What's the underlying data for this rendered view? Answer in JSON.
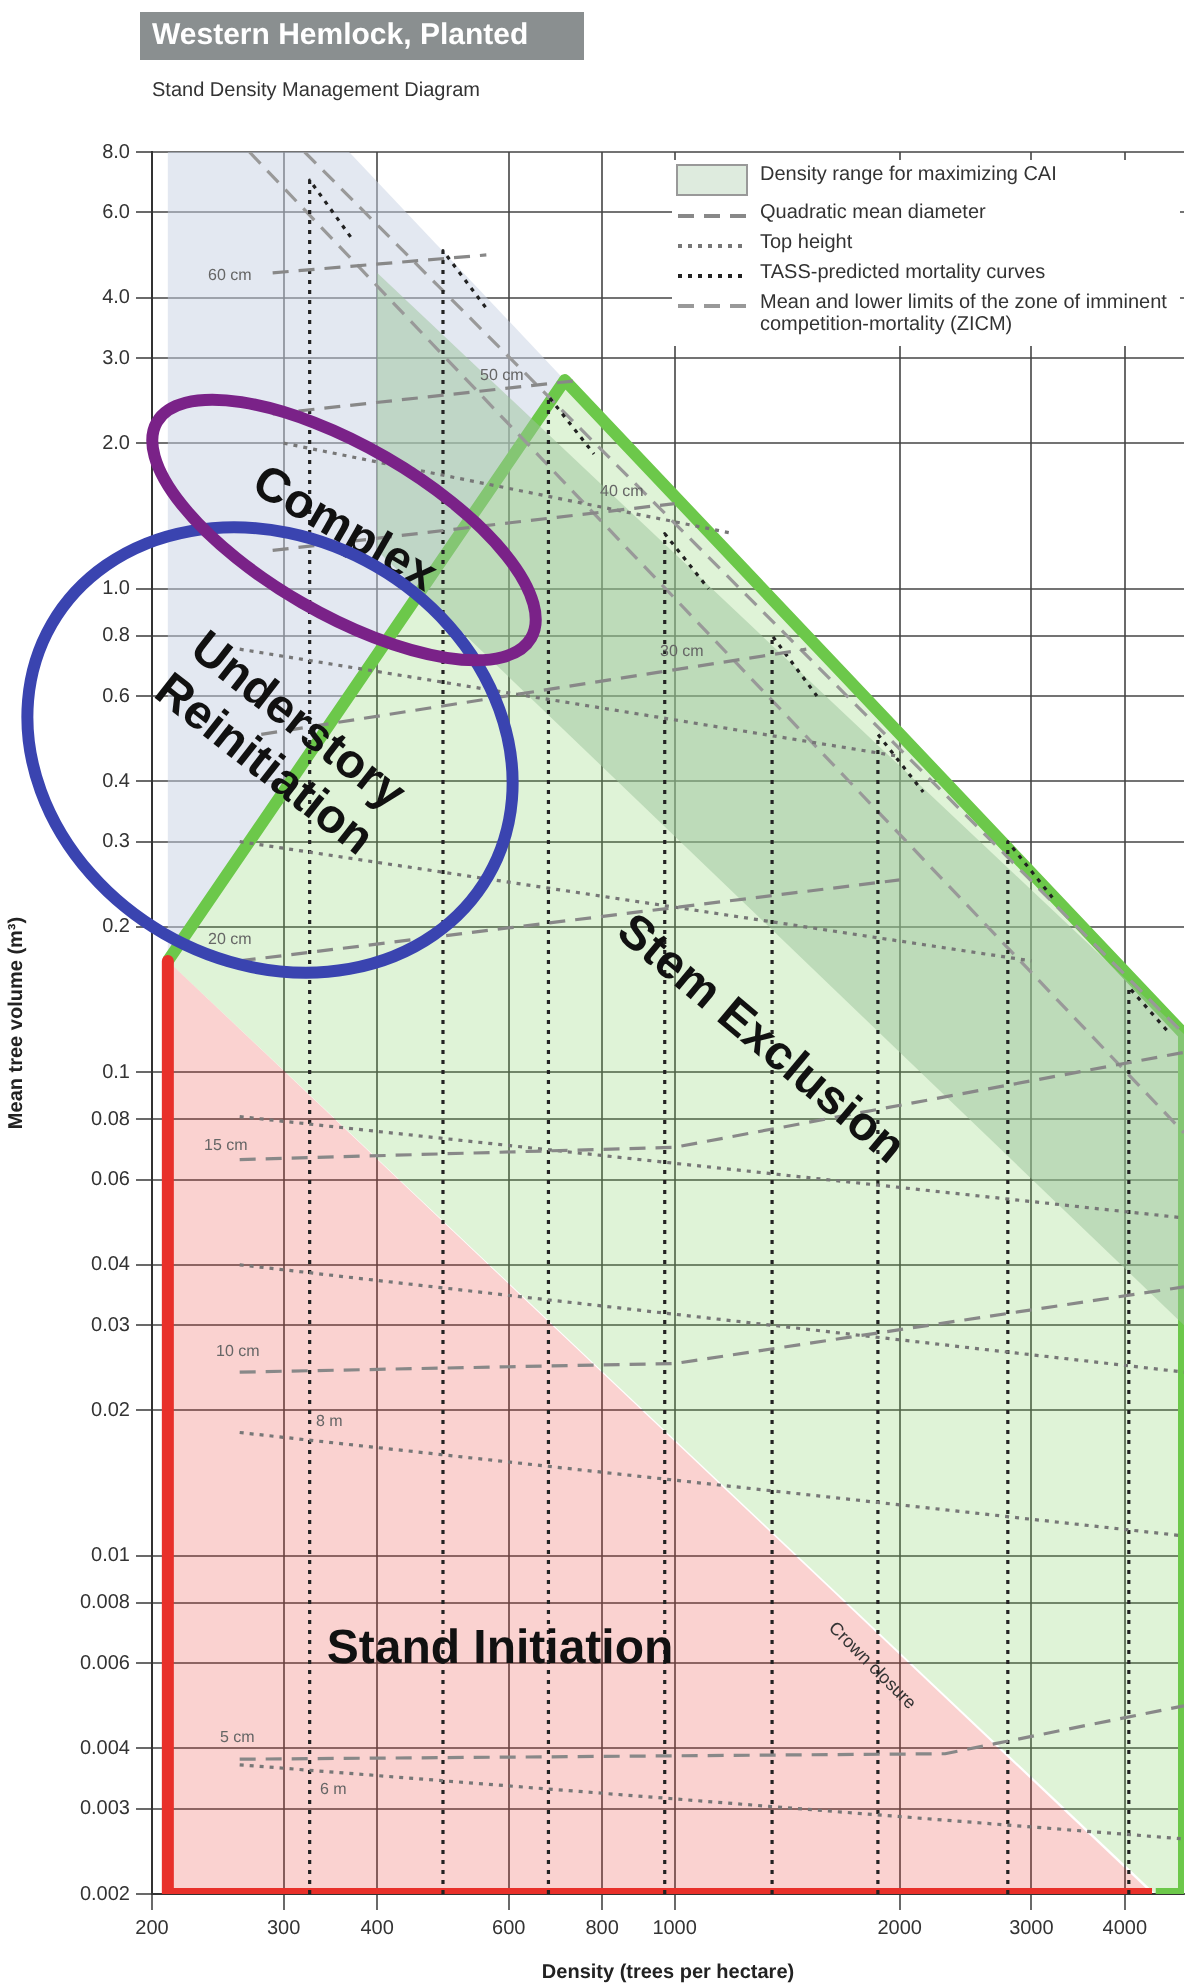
{
  "chart_data": {
    "type": "line",
    "title": "Western Hemlock, Planted",
    "subtitle": "Stand Density Management Diagram",
    "xlabel": "Density (trees per hectare)",
    "ylabel": "Mean tree volume (m³)",
    "log": "xy",
    "grid": true,
    "marker": "none",
    "legend": "top right",
    "xlim": [
      200,
      4800
    ],
    "xticks": [
      200,
      300,
      400,
      600,
      800,
      1000,
      2000,
      3000,
      4000
    ],
    "ylim": [
      0.002,
      8
    ],
    "yticks": [
      {
        "value": 8,
        "label": "8.0"
      },
      {
        "value": 6,
        "label": "6.0"
      },
      {
        "value": 4,
        "label": "4.0"
      },
      {
        "value": 3,
        "label": "3.0"
      },
      {
        "value": 2,
        "label": "2.0"
      },
      {
        "value": 1,
        "label": "1.0"
      },
      0.8,
      0.6,
      0.4,
      0.3,
      0.2,
      0.1,
      0.08,
      0.06,
      0.04,
      0.03,
      0.02,
      0.01,
      0.008,
      0.006,
      0.004,
      0.003,
      0.002
    ],
    "series": [
      {
        "type": "area",
        "color": "#c8d2e4",
        "x": [
          210,
          210,
          367,
          713
        ],
        "values": [
          0.17,
          8,
          8,
          2.7
        ]
      },
      {
        "type": "area",
        "color": "#6cc84a",
        "line_style": "solid",
        "x": [
          210,
          713,
          4800,
          4800,
          4400
        ],
        "values": [
          0.17,
          2.7,
          0.12,
          0.002,
          0.002
        ]
      },
      {
        "type": "area",
        "color": "#e8302a",
        "line_style": "solid",
        "x": [
          210,
          210,
          4350
        ],
        "values": [
          0.17,
          0.002,
          0.002
        ]
      },
      {
        "type": "area",
        "name": "Density range for maximizing CAI",
        "color": "#9cc49c",
        "x": [
          400,
          4800,
          4800,
          400
        ],
        "values": [
          4.5,
          0.12,
          0.03,
          1.2
        ]
      },
      {
        "type": "line",
        "name": "Quadratic mean diameter",
        "color": "#888888",
        "line_style": "dashed",
        "x": [
          262,
          2300,
          4800
        ],
        "values": [
          0.0038,
          0.0039,
          0.0049
        ]
      },
      {
        "type": "line",
        "color": "#888888",
        "line_style": "dashed",
        "x": [
          262,
          1000,
          4800
        ],
        "values": [
          0.024,
          0.025,
          0.036
        ]
      },
      {
        "type": "line",
        "color": "#888888",
        "line_style": "dashed",
        "x": [
          262,
          1000,
          4800
        ],
        "values": [
          0.066,
          0.07,
          0.11
        ]
      },
      {
        "type": "line",
        "color": "#888888",
        "line_style": "dashed",
        "x": [
          262,
          2000
        ],
        "values": [
          0.17,
          0.25
        ]
      },
      {
        "type": "line",
        "color": "#888888",
        "line_style": "dashed",
        "x": [
          280,
          1500
        ],
        "values": [
          0.5,
          0.75
        ]
      },
      {
        "type": "line",
        "color": "#888888",
        "line_style": "dashed",
        "x": [
          290,
          1000
        ],
        "values": [
          1.2,
          1.5
        ]
      },
      {
        "type": "line",
        "color": "#888888",
        "line_style": "dashed",
        "x": [
          290,
          750
        ],
        "values": [
          2.3,
          2.7
        ]
      },
      {
        "type": "line",
        "color": "#888888",
        "line_style": "dashed",
        "x": [
          290,
          560
        ],
        "values": [
          4.5,
          4.9
        ]
      },
      {
        "type": "line",
        "name": "Top height",
        "color": "#777777",
        "line_style": "dotted",
        "x": [
          262,
          4800
        ],
        "values": [
          0.0037,
          0.0026
        ]
      },
      {
        "type": "line",
        "color": "#777777",
        "line_style": "dotted",
        "x": [
          262,
          4800
        ],
        "values": [
          0.018,
          0.011
        ]
      },
      {
        "type": "line",
        "color": "#777777",
        "line_style": "dotted",
        "x": [
          262,
          4800
        ],
        "values": [
          0.04,
          0.024
        ]
      },
      {
        "type": "line",
        "color": "#777777",
        "line_style": "dotted",
        "x": [
          262,
          4800
        ],
        "values": [
          0.081,
          0.05
        ]
      },
      {
        "type": "line",
        "color": "#777777",
        "line_style": "dotted",
        "x": [
          262,
          3000
        ],
        "values": [
          0.3,
          0.17
        ]
      },
      {
        "type": "line",
        "color": "#777777",
        "line_style": "dotted",
        "x": [
          262,
          2000
        ],
        "values": [
          0.75,
          0.45
        ]
      },
      {
        "type": "line",
        "color": "#777777",
        "line_style": "dotted",
        "x": [
          300,
          1200
        ],
        "values": [
          2,
          1.3
        ]
      },
      {
        "type": "line",
        "name": "TASS-predicted mortality curves",
        "color": "#222222",
        "line_style": "dotted",
        "x": [
          325,
          325,
          370
        ],
        "values": [
          0.002,
          7,
          5.3
        ]
      },
      {
        "type": "line",
        "color": "#222222",
        "line_style": "dotted",
        "x": [
          490,
          490,
          560
        ],
        "values": [
          0.002,
          5,
          3.8
        ]
      },
      {
        "type": "line",
        "color": "#222222",
        "line_style": "dotted",
        "x": [
          678,
          678,
          780
        ],
        "values": [
          0.002,
          2.5,
          1.9
        ]
      },
      {
        "type": "line",
        "color": "#222222",
        "line_style": "dotted",
        "x": [
          970,
          970,
          1110
        ],
        "values": [
          0.002,
          1.3,
          1
        ]
      },
      {
        "type": "line",
        "color": "#222222",
        "line_style": "dotted",
        "x": [
          1350,
          1350,
          1550
        ],
        "values": [
          0.002,
          0.8,
          0.6
        ]
      },
      {
        "type": "line",
        "color": "#222222",
        "line_style": "dotted",
        "x": [
          1870,
          1870,
          2150
        ],
        "values": [
          0.002,
          0.5,
          0.38
        ]
      },
      {
        "type": "line",
        "color": "#222222",
        "line_style": "dotted",
        "x": [
          2790,
          2790,
          3200
        ],
        "values": [
          0.002,
          0.3,
          0.23
        ]
      },
      {
        "type": "line",
        "color": "#222222",
        "line_style": "dotted",
        "x": [
          4050,
          4050,
          4600
        ],
        "values": [
          0.002,
          0.15,
          0.12
        ]
      },
      {
        "type": "line",
        "name": "Mean and lower limits of the zone of imminent competition-mortality (ZICM)",
        "color": "#999999",
        "line_style": "dashed",
        "x": [
          320,
          4800
        ],
        "values": [
          8,
          0.12
        ]
      },
      {
        "type": "line",
        "color": "#999999",
        "line_style": "dashed",
        "x": [
          270,
          4800
        ],
        "values": [
          8,
          0.075
        ]
      }
    ],
    "annotations": [
      "Complex",
      "Understory Reinitiation",
      "Stem Exclusion",
      "Stand Initiation",
      "Crown closure",
      "5 cm",
      "6 m",
      "10 cm",
      "8 m",
      "15 cm",
      "20 cm",
      "30 cm",
      "40 cm",
      "50 cm",
      "60 cm"
    ]
  }
}
